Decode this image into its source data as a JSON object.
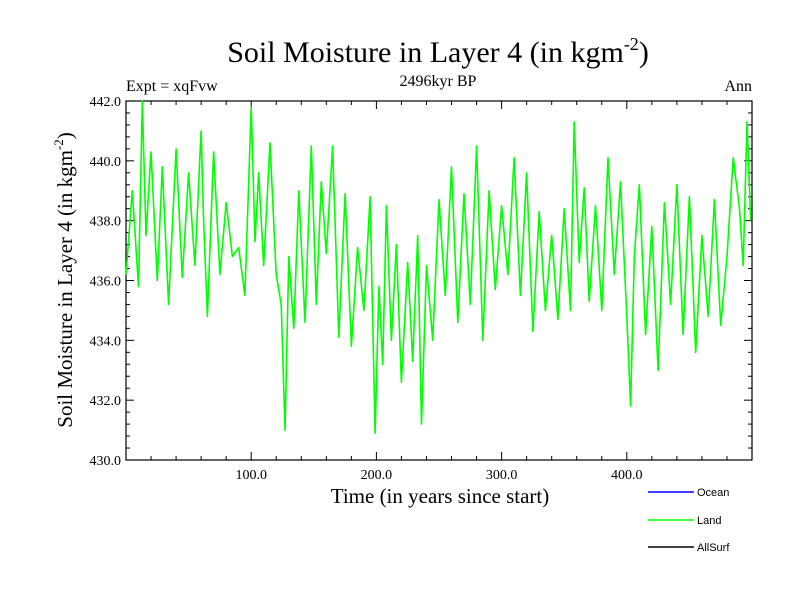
{
  "chart_data": {
    "type": "line",
    "title": "Soil Moisture in Layer 4 (in kgm",
    "title_sup": "-2",
    "title_end": ")",
    "subtitle": "2496kyr BP",
    "expt_label": "Expt = xqFvw",
    "season_label": "Ann",
    "xlabel": "Time (in years since start)",
    "ylabel": "Soil Moisture in Layer 4 (in kgm",
    "ylabel_sup": "-2",
    "ylabel_end": ")",
    "xlim": [
      0,
      500
    ],
    "ylim": [
      430.0,
      442.0
    ],
    "x_ticks": [
      100,
      200,
      300,
      400
    ],
    "x_tick_labels": [
      "100.0",
      "200.0",
      "300.0",
      "400.0"
    ],
    "y_ticks": [
      430,
      432,
      434,
      436,
      438,
      440,
      442
    ],
    "y_tick_labels": [
      "430.0",
      "432.0",
      "434.0",
      "436.0",
      "438.0",
      "440.0",
      "442.0"
    ],
    "legend": [
      {
        "name": "Ocean",
        "color": "#0000ff"
      },
      {
        "name": "Land",
        "color": "#00ff00"
      },
      {
        "name": "AllSurf",
        "color": "#000000"
      }
    ],
    "series": [
      {
        "name": "Land",
        "color": "#00ff00",
        "x": [
          0,
          5,
          10,
          13,
          16,
          20,
          25,
          29,
          34,
          40,
          45,
          50,
          55,
          60,
          62,
          65,
          70,
          75,
          80,
          85,
          90,
          95,
          100,
          103,
          106,
          110,
          115,
          120,
          124,
          127,
          130,
          134,
          138,
          143,
          148,
          152,
          156,
          160,
          165,
          170,
          175,
          180,
          185,
          190,
          195,
          199,
          202,
          205,
          208,
          212,
          216,
          220,
          225,
          229,
          233,
          236,
          240,
          245,
          250,
          255,
          260,
          265,
          270,
          275,
          280,
          285,
          290,
          295,
          300,
          305,
          310,
          315,
          320,
          325,
          330,
          335,
          340,
          345,
          350,
          355,
          358,
          362,
          366,
          370,
          375,
          380,
          385,
          390,
          395,
          400,
          403,
          406,
          410,
          415,
          420,
          425,
          430,
          435,
          440,
          445,
          450,
          455,
          460,
          465,
          470,
          475,
          480,
          485,
          490,
          493,
          496,
          499
        ],
        "values": [
          436.2,
          439.0,
          435.8,
          442.0,
          437.5,
          440.3,
          436.0,
          439.8,
          435.2,
          440.4,
          436.1,
          439.6,
          436.5,
          441.0,
          438.0,
          434.8,
          440.3,
          436.2,
          438.6,
          436.8,
          437.1,
          435.5,
          441.8,
          437.3,
          439.6,
          436.5,
          440.6,
          436.2,
          435.2,
          431.0,
          436.8,
          434.4,
          439.0,
          434.6,
          440.5,
          435.2,
          439.3,
          436.9,
          440.5,
          434.1,
          438.9,
          433.8,
          437.1,
          435.0,
          438.8,
          430.9,
          435.8,
          433.2,
          438.5,
          434.0,
          437.2,
          432.6,
          436.6,
          433.3,
          437.5,
          431.2,
          436.5,
          434.0,
          438.7,
          435.5,
          439.8,
          434.6,
          438.9,
          435.2,
          440.5,
          434.0,
          439.0,
          435.7,
          438.5,
          436.2,
          440.1,
          435.5,
          439.6,
          434.3,
          438.3,
          435.0,
          437.5,
          434.7,
          438.4,
          435.0,
          441.3,
          436.6,
          439.1,
          435.3,
          438.5,
          435.0,
          440.1,
          436.2,
          439.3,
          434.8,
          431.8,
          436.8,
          439.2,
          434.2,
          437.8,
          433.0,
          438.6,
          435.2,
          439.2,
          434.2,
          438.8,
          433.6,
          437.5,
          434.8,
          438.7,
          434.5,
          436.8,
          440.1,
          438.4,
          436.5,
          441.3,
          438.0
        ]
      }
    ]
  }
}
